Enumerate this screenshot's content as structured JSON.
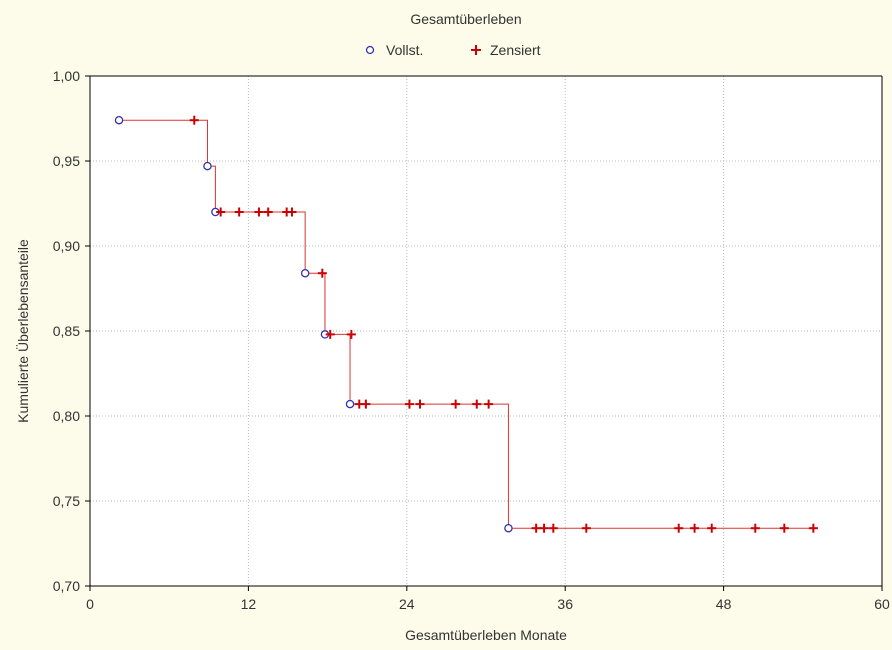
{
  "chart_data": {
    "type": "line",
    "title": "Gesamtüberleben",
    "xlabel": "Gesamtüberleben Monate",
    "ylabel": "Kumulierte Überlebensanteile",
    "xlim": [
      0,
      60
    ],
    "ylim": [
      0.7,
      1.0
    ],
    "x_ticks": [
      0,
      12,
      24,
      36,
      48,
      60
    ],
    "y_ticks": [
      0.7,
      0.75,
      0.8,
      0.85,
      0.9,
      0.95,
      1.0
    ],
    "x_tick_labels": [
      "0",
      "12",
      "24",
      "36",
      "48",
      "60"
    ],
    "y_tick_labels": [
      "0,70",
      "0,75",
      "0,80",
      "0,85",
      "0,90",
      "0,95",
      "1,00"
    ],
    "grid": true,
    "legend_position": "top-center",
    "colors": {
      "step_line": "#dd3333",
      "complete_marker": "#3333aa",
      "censored_marker": "#cc0000",
      "background": "#fdfbe9",
      "plot_area": "#ffffff",
      "grid": "#b8b8b8",
      "axis": "#000000"
    },
    "series": [
      {
        "name": "Vollst.",
        "marker": "circle",
        "points": [
          {
            "x": 2.2,
            "y": 0.974
          },
          {
            "x": 8.9,
            "y": 0.947
          },
          {
            "x": 9.5,
            "y": 0.92
          },
          {
            "x": 16.3,
            "y": 0.884
          },
          {
            "x": 17.8,
            "y": 0.848
          },
          {
            "x": 19.7,
            "y": 0.807
          },
          {
            "x": 31.7,
            "y": 0.734
          }
        ]
      },
      {
        "name": "Zensiert",
        "marker": "plus",
        "points": [
          {
            "x": 7.9,
            "y": 0.974
          },
          {
            "x": 9.9,
            "y": 0.92
          },
          {
            "x": 11.3,
            "y": 0.92
          },
          {
            "x": 12.8,
            "y": 0.92
          },
          {
            "x": 13.5,
            "y": 0.92
          },
          {
            "x": 14.9,
            "y": 0.92
          },
          {
            "x": 15.3,
            "y": 0.92
          },
          {
            "x": 17.6,
            "y": 0.884
          },
          {
            "x": 18.2,
            "y": 0.848
          },
          {
            "x": 19.8,
            "y": 0.848
          },
          {
            "x": 20.4,
            "y": 0.807
          },
          {
            "x": 20.9,
            "y": 0.807
          },
          {
            "x": 24.2,
            "y": 0.807
          },
          {
            "x": 25.0,
            "y": 0.807
          },
          {
            "x": 27.7,
            "y": 0.807
          },
          {
            "x": 29.3,
            "y": 0.807
          },
          {
            "x": 30.2,
            "y": 0.807
          },
          {
            "x": 33.8,
            "y": 0.734
          },
          {
            "x": 34.4,
            "y": 0.734
          },
          {
            "x": 35.1,
            "y": 0.734
          },
          {
            "x": 37.6,
            "y": 0.734
          },
          {
            "x": 44.6,
            "y": 0.734
          },
          {
            "x": 45.8,
            "y": 0.734
          },
          {
            "x": 47.1,
            "y": 0.734
          },
          {
            "x": 50.4,
            "y": 0.734
          },
          {
            "x": 52.6,
            "y": 0.734
          },
          {
            "x": 54.8,
            "y": 0.734
          }
        ]
      }
    ],
    "survival_curve": [
      {
        "x": 2.2,
        "y": 0.974
      },
      {
        "x": 8.9,
        "y": 0.974
      },
      {
        "x": 8.9,
        "y": 0.947
      },
      {
        "x": 9.5,
        "y": 0.947
      },
      {
        "x": 9.5,
        "y": 0.92
      },
      {
        "x": 16.3,
        "y": 0.92
      },
      {
        "x": 16.3,
        "y": 0.884
      },
      {
        "x": 17.8,
        "y": 0.884
      },
      {
        "x": 17.8,
        "y": 0.848
      },
      {
        "x": 19.7,
        "y": 0.848
      },
      {
        "x": 19.7,
        "y": 0.807
      },
      {
        "x": 31.7,
        "y": 0.807
      },
      {
        "x": 31.7,
        "y": 0.734
      },
      {
        "x": 54.8,
        "y": 0.734
      }
    ]
  }
}
